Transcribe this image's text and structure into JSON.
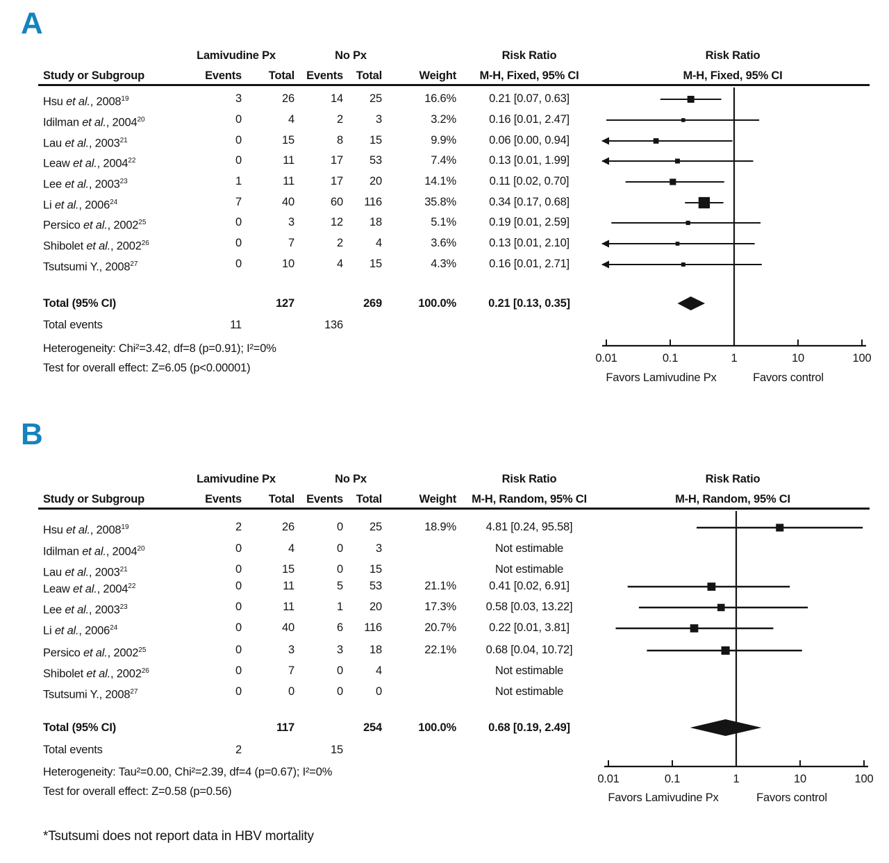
{
  "colors": {
    "panel_letter_blue": "#1583bd",
    "ink": "#141414"
  },
  "footnote": "*Tsutsumi does not report data in HBV mortality",
  "chart_data": {
    "type": "forest-plot",
    "scale": "log10",
    "panels": [
      {
        "label": "A",
        "group_headers": {
          "treatment": "Lamivudine Px",
          "control": "No Px",
          "risk_ratio": "Risk Ratio",
          "risk_ratio_plot": "Risk Ratio"
        },
        "column_headers": {
          "study": "Study or Subgroup",
          "events_tx": "Events",
          "total_tx": "Total",
          "events_ctl": "Events",
          "total_ctl": "Total",
          "weight": "Weight",
          "ci": "M-H, Fixed, 95% CI",
          "ci_plot": "M-H, Fixed, 95% CI"
        },
        "studies": [
          {
            "name_pre": "Hsu ",
            "name_it": "et al.",
            "name_post": ", 2008",
            "ref": "19",
            "events_tx": "3",
            "total_tx": "26",
            "events_ctl": "14",
            "total_ctl": "25",
            "weight": "16.6%",
            "weight_val": 16.6,
            "rr_text": "0.21 [0.07, 0.63]",
            "rr": 0.21,
            "ci_low": 0.07,
            "ci_high": 0.63,
            "arrow_low": false,
            "estimable": true
          },
          {
            "name_pre": "Idilman ",
            "name_it": "et al.",
            "name_post": ", 2004",
            "ref": "20",
            "events_tx": "0",
            "total_tx": "4",
            "events_ctl": "2",
            "total_ctl": "3",
            "weight": "3.2%",
            "weight_val": 3.2,
            "rr_text": "0.16 [0.01, 2.47]",
            "rr": 0.16,
            "ci_low": 0.01,
            "ci_high": 2.47,
            "arrow_low": false,
            "estimable": true
          },
          {
            "name_pre": "Lau ",
            "name_it": "et al.",
            "name_post": ", 2003",
            "ref": "21",
            "events_tx": "0",
            "total_tx": "15",
            "events_ctl": "8",
            "total_ctl": "15",
            "weight": "9.9%",
            "weight_val": 9.9,
            "rr_text": "0.06 [0.00, 0.94]",
            "rr": 0.06,
            "ci_low": 0.004,
            "ci_high": 0.94,
            "arrow_low": true,
            "estimable": true
          },
          {
            "name_pre": "Leaw ",
            "name_it": "et al.",
            "name_post": ", 2004",
            "ref": "22",
            "events_tx": "0",
            "total_tx": "11",
            "events_ctl": "17",
            "total_ctl": "53",
            "weight": "7.4%",
            "weight_val": 7.4,
            "rr_text": "0.13 [0.01, 1.99]",
            "rr": 0.13,
            "ci_low": 0.008,
            "ci_high": 1.99,
            "arrow_low": true,
            "estimable": true
          },
          {
            "name_pre": "Lee ",
            "name_it": "et al.",
            "name_post": ", 2003",
            "ref": "23",
            "events_tx": "1",
            "total_tx": "11",
            "events_ctl": "17",
            "total_ctl": "20",
            "weight": "14.1%",
            "weight_val": 14.1,
            "rr_text": "0.11 [0.02, 0.70]",
            "rr": 0.11,
            "ci_low": 0.02,
            "ci_high": 0.7,
            "arrow_low": false,
            "estimable": true
          },
          {
            "name_pre": "Li ",
            "name_it": "et al.",
            "name_post": ", 2006",
            "ref": "24",
            "events_tx": "7",
            "total_tx": "40",
            "events_ctl": "60",
            "total_ctl": "116",
            "weight": "35.8%",
            "weight_val": 35.8,
            "rr_text": "0.34 [0.17, 0.68]",
            "rr": 0.34,
            "ci_low": 0.17,
            "ci_high": 0.68,
            "arrow_low": false,
            "estimable": true
          },
          {
            "name_pre": "Persico ",
            "name_it": "et al.",
            "name_post": ", 2002",
            "ref": "25",
            "events_tx": "0",
            "total_tx": "3",
            "events_ctl": "12",
            "total_ctl": "18",
            "weight": "5.1%",
            "weight_val": 5.1,
            "rr_text": "0.19 [0.01, 2.59]",
            "rr": 0.19,
            "ci_low": 0.012,
            "ci_high": 2.59,
            "arrow_low": false,
            "estimable": true
          },
          {
            "name_pre": "Shibolet ",
            "name_it": "et al.",
            "name_post": ", 2002",
            "ref": "26",
            "events_tx": "0",
            "total_tx": "7",
            "events_ctl": "2",
            "total_ctl": "4",
            "weight": "3.6%",
            "weight_val": 3.6,
            "rr_text": "0.13 [0.01, 2.10]",
            "rr": 0.13,
            "ci_low": 0.008,
            "ci_high": 2.1,
            "arrow_low": true,
            "estimable": true
          },
          {
            "name_pre": "Tsutsumi Y., 2008",
            "name_it": "",
            "name_post": "",
            "ref": "27",
            "events_tx": "0",
            "total_tx": "10",
            "events_ctl": "4",
            "total_ctl": "15",
            "weight": "4.3%",
            "weight_val": 4.3,
            "rr_text": "0.16 [0.01, 2.71]",
            "rr": 0.16,
            "ci_low": 0.009,
            "ci_high": 2.71,
            "arrow_low": true,
            "estimable": true
          }
        ],
        "total_row": {
          "label": "Total (95% CI)",
          "total_tx": "127",
          "total_ctl": "269",
          "weight": "100.0%",
          "rr_text": "0.21 [0.13, 0.35]",
          "rr": 0.21,
          "ci_low": 0.13,
          "ci_high": 0.35
        },
        "total_events": {
          "label": "Total events",
          "treatment": "11",
          "control": "136"
        },
        "heterogeneity": "Heterogeneity: Chi²=3.42, df=8 (p=0.91); I²=0%",
        "overall_effect": "Test for overall effect: Z=6.05 (p<0.00001)",
        "axis": {
          "tick_labels": [
            "0.01",
            "0.1",
            "1",
            "10",
            "100"
          ],
          "tick_values": [
            0.01,
            0.1,
            1,
            10,
            100
          ],
          "favors_left": "Favors Lamivudine Px",
          "favors_right": "Favors control"
        }
      },
      {
        "label": "B",
        "group_headers": {
          "treatment": "Lamivudine Px",
          "control": "No Px",
          "risk_ratio": "Risk Ratio",
          "risk_ratio_plot": "Risk Ratio"
        },
        "column_headers": {
          "study": "Study or Subgroup",
          "events_tx": "Events",
          "total_tx": "Total",
          "events_ctl": "Events",
          "total_ctl": "Total",
          "weight": "Weight",
          "ci": "M-H, Random, 95% CI",
          "ci_plot": "M-H, Random, 95% CI"
        },
        "studies": [
          {
            "name_pre": "Hsu ",
            "name_it": "et al.",
            "name_post": ", 2008",
            "ref": "19",
            "events_tx": "2",
            "total_tx": "26",
            "events_ctl": "0",
            "total_ctl": "25",
            "weight": "18.9%",
            "weight_val": 18.9,
            "rr_text": "4.81 [0.24, 95.58]",
            "rr": 4.81,
            "ci_low": 0.24,
            "ci_high": 95.58,
            "arrow_low": false,
            "estimable": true
          },
          {
            "name_pre": "Idilman ",
            "name_it": "et al.",
            "name_post": ", 2004",
            "ref": "20",
            "events_tx": "0",
            "total_tx": "4",
            "events_ctl": "0",
            "total_ctl": "3",
            "weight": "",
            "weight_val": 0,
            "rr_text": "Not estimable",
            "rr": null,
            "ci_low": null,
            "ci_high": null,
            "arrow_low": false,
            "estimable": false
          },
          {
            "name_pre": "Lau ",
            "name_it": "et al.",
            "name_post": ", 2003",
            "ref": "21",
            "events_tx": "0",
            "total_tx": "15",
            "events_ctl": "0",
            "total_ctl": "15",
            "weight": "",
            "weight_val": 0,
            "rr_text": "Not estimable",
            "rr": null,
            "ci_low": null,
            "ci_high": null,
            "arrow_low": false,
            "estimable": false
          },
          {
            "name_pre": "Leaw ",
            "name_it": "et al.",
            "name_post": ", 2004",
            "ref": "22",
            "events_tx": "0",
            "total_tx": "11",
            "events_ctl": "5",
            "total_ctl": "53",
            "weight": "21.1%",
            "weight_val": 21.1,
            "rr_text": "0.41 [0.02, 6.91]",
            "rr": 0.41,
            "ci_low": 0.02,
            "ci_high": 6.91,
            "arrow_low": false,
            "estimable": true
          },
          {
            "name_pre": "Lee ",
            "name_it": "et al.",
            "name_post": ", 2003",
            "ref": "23",
            "events_tx": "0",
            "total_tx": "11",
            "events_ctl": "1",
            "total_ctl": "20",
            "weight": "17.3%",
            "weight_val": 17.3,
            "rr_text": "0.58 [0.03, 13.22]",
            "rr": 0.58,
            "ci_low": 0.03,
            "ci_high": 13.22,
            "arrow_low": false,
            "estimable": true
          },
          {
            "name_pre": "Li ",
            "name_it": "et al.",
            "name_post": ", 2006",
            "ref": "24",
            "events_tx": "0",
            "total_tx": "40",
            "events_ctl": "6",
            "total_ctl": "116",
            "weight": "20.7%",
            "weight_val": 20.7,
            "rr_text": "0.22 [0.01, 3.81]",
            "rr": 0.22,
            "ci_low": 0.013,
            "ci_high": 3.81,
            "arrow_low": false,
            "estimable": true
          },
          {
            "name_pre": "Persico ",
            "name_it": "et al.",
            "name_post": ", 2002",
            "ref": "25",
            "events_tx": "0",
            "total_tx": "3",
            "events_ctl": "3",
            "total_ctl": "18",
            "weight": "22.1%",
            "weight_val": 22.1,
            "rr_text": "0.68 [0.04, 10.72]",
            "rr": 0.68,
            "ci_low": 0.04,
            "ci_high": 10.72,
            "arrow_low": false,
            "estimable": true
          },
          {
            "name_pre": "Shibolet ",
            "name_it": "et al.",
            "name_post": ", 2002",
            "ref": "26",
            "events_tx": "0",
            "total_tx": "7",
            "events_ctl": "0",
            "total_ctl": "4",
            "weight": "",
            "weight_val": 0,
            "rr_text": "Not estimable",
            "rr": null,
            "ci_low": null,
            "ci_high": null,
            "arrow_low": false,
            "estimable": false
          },
          {
            "name_pre": "Tsutsumi Y., 2008",
            "name_it": "",
            "name_post": "",
            "ref": "27",
            "events_tx": "0",
            "total_tx": "0",
            "events_ctl": "0",
            "total_ctl": "0",
            "weight": "",
            "weight_val": 0,
            "rr_text": "Not estimable",
            "rr": null,
            "ci_low": null,
            "ci_high": null,
            "arrow_low": false,
            "estimable": false
          }
        ],
        "total_row": {
          "label": "Total (95% CI)",
          "total_tx": "117",
          "total_ctl": "254",
          "weight": "100.0%",
          "rr_text": "0.68 [0.19, 2.49]",
          "rr": 0.68,
          "ci_low": 0.19,
          "ci_high": 2.49
        },
        "total_events": {
          "label": "Total events",
          "treatment": "2",
          "control": "15"
        },
        "heterogeneity": "Heterogeneity: Tau²=0.00, Chi²=2.39, df=4 (p=0.67); I²=0%",
        "overall_effect": "Test for overall effect: Z=0.58 (p=0.56)",
        "axis": {
          "tick_labels": [
            "0.01",
            "0.1",
            "1",
            "10",
            "100"
          ],
          "tick_values": [
            0.01,
            0.1,
            1,
            10,
            100
          ],
          "favors_left": "Favors Lamivudine Px",
          "favors_right": "Favors control"
        }
      }
    ]
  }
}
